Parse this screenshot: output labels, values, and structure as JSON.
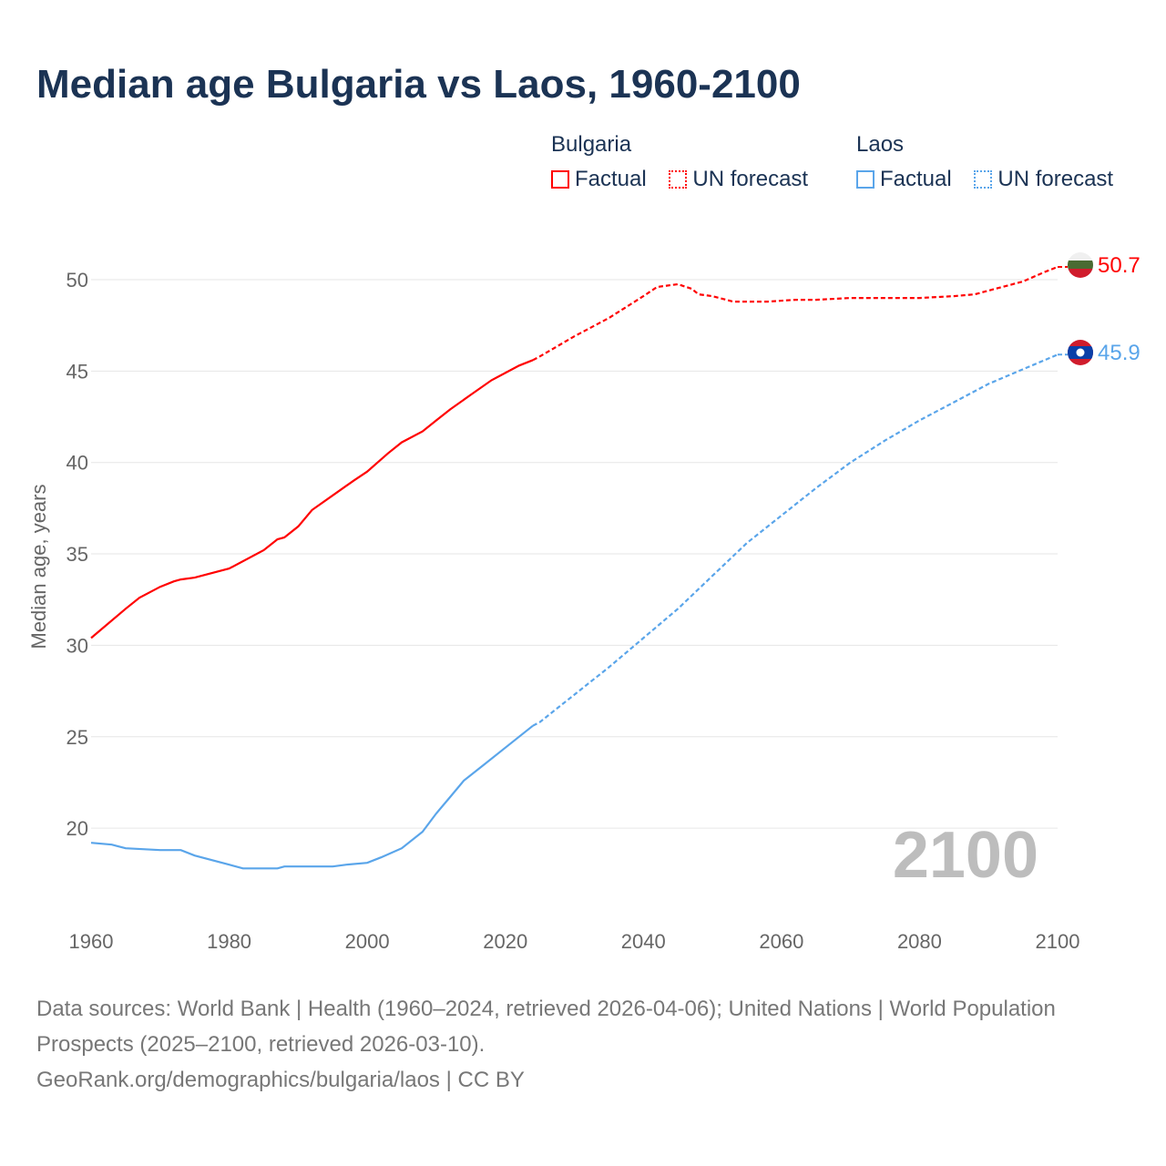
{
  "title": "Median age Bulgaria vs Laos, 1960-2100",
  "legend": [
    {
      "group": "Bulgaria",
      "color": "#ff0000",
      "factual": "Factual",
      "forecast": "UN forecast"
    },
    {
      "group": "Laos",
      "color": "#5aa5ea",
      "factual": "Factual",
      "forecast": "UN forecast"
    }
  ],
  "footer": {
    "sources": "Data sources: World Bank | Health (1960–2024, retrieved 2026-04-06); United Nations | World Population Prospects (2025–2100, retrieved 2026-03-10).",
    "credit": "GeoRank.org/demographics/bulgaria/laos | CC BY"
  },
  "chart_data": {
    "type": "line",
    "title": "Median age Bulgaria vs Laos, 1960-2100",
    "xlabel": "",
    "ylabel": "Median age, years",
    "xlim": [
      1960,
      2100
    ],
    "ylim": [
      15,
      50
    ],
    "xticks": [
      "1960",
      "1980",
      "2000",
      "2020",
      "2040",
      "2060",
      "2080",
      "2100"
    ],
    "yticks": [
      "20",
      "25",
      "30",
      "35",
      "40",
      "45",
      "50"
    ],
    "year_watermark": "2100",
    "grid": true,
    "legend_position": "top-right",
    "series": [
      {
        "name": "Bulgaria",
        "color": "#ff0000",
        "end_label": "50.7",
        "factual": [
          [
            1960,
            30.4
          ],
          [
            1965,
            32.0
          ],
          [
            1967,
            32.6
          ],
          [
            1970,
            33.2
          ],
          [
            1972,
            33.5
          ],
          [
            1973,
            33.6
          ],
          [
            1975,
            33.7
          ],
          [
            1980,
            34.2
          ],
          [
            1985,
            35.2
          ],
          [
            1987,
            35.8
          ],
          [
            1988,
            35.9
          ],
          [
            1990,
            36.5
          ],
          [
            1992,
            37.4
          ],
          [
            1995,
            38.2
          ],
          [
            1998,
            39.0
          ],
          [
            2000,
            39.5
          ],
          [
            2003,
            40.5
          ],
          [
            2005,
            41.1
          ],
          [
            2008,
            41.7
          ],
          [
            2010,
            42.3
          ],
          [
            2012,
            42.9
          ],
          [
            2015,
            43.7
          ],
          [
            2018,
            44.5
          ],
          [
            2020,
            44.9
          ],
          [
            2022,
            45.3
          ],
          [
            2024,
            45.6
          ]
        ],
        "forecast": [
          [
            2024,
            45.6
          ],
          [
            2025,
            45.8
          ],
          [
            2030,
            46.9
          ],
          [
            2035,
            47.9
          ],
          [
            2040,
            49.1
          ],
          [
            2042,
            49.6
          ],
          [
            2045,
            49.75
          ],
          [
            2047,
            49.5
          ],
          [
            2048,
            49.2
          ],
          [
            2050,
            49.1
          ],
          [
            2053,
            48.8
          ],
          [
            2058,
            48.8
          ],
          [
            2062,
            48.9
          ],
          [
            2065,
            48.9
          ],
          [
            2070,
            49.0
          ],
          [
            2075,
            49.0
          ],
          [
            2080,
            49.0
          ],
          [
            2085,
            49.1
          ],
          [
            2088,
            49.2
          ],
          [
            2090,
            49.4
          ],
          [
            2095,
            49.9
          ],
          [
            2098,
            50.4
          ],
          [
            2100,
            50.7
          ]
        ]
      },
      {
        "name": "Laos",
        "color": "#5aa5ea",
        "end_label": "45.9",
        "factual": [
          [
            1960,
            19.2
          ],
          [
            1963,
            19.1
          ],
          [
            1965,
            18.9
          ],
          [
            1970,
            18.8
          ],
          [
            1973,
            18.8
          ],
          [
            1975,
            18.5
          ],
          [
            1978,
            18.2
          ],
          [
            1980,
            18.0
          ],
          [
            1982,
            17.8
          ],
          [
            1987,
            17.8
          ],
          [
            1988,
            17.9
          ],
          [
            1995,
            17.9
          ],
          [
            1997,
            18.0
          ],
          [
            2000,
            18.1
          ],
          [
            2002,
            18.4
          ],
          [
            2005,
            18.9
          ],
          [
            2008,
            19.8
          ],
          [
            2010,
            20.8
          ],
          [
            2012,
            21.7
          ],
          [
            2014,
            22.6
          ],
          [
            2017,
            23.5
          ],
          [
            2020,
            24.4
          ],
          [
            2024,
            25.6
          ]
        ],
        "forecast": [
          [
            2024,
            25.6
          ],
          [
            2025,
            25.8
          ],
          [
            2030,
            27.3
          ],
          [
            2035,
            28.8
          ],
          [
            2040,
            30.4
          ],
          [
            2045,
            32.0
          ],
          [
            2050,
            33.8
          ],
          [
            2055,
            35.6
          ],
          [
            2060,
            37.1
          ],
          [
            2065,
            38.6
          ],
          [
            2070,
            40.0
          ],
          [
            2075,
            41.2
          ],
          [
            2080,
            42.3
          ],
          [
            2085,
            43.3
          ],
          [
            2090,
            44.3
          ],
          [
            2095,
            45.1
          ],
          [
            2100,
            45.9
          ]
        ]
      }
    ]
  }
}
